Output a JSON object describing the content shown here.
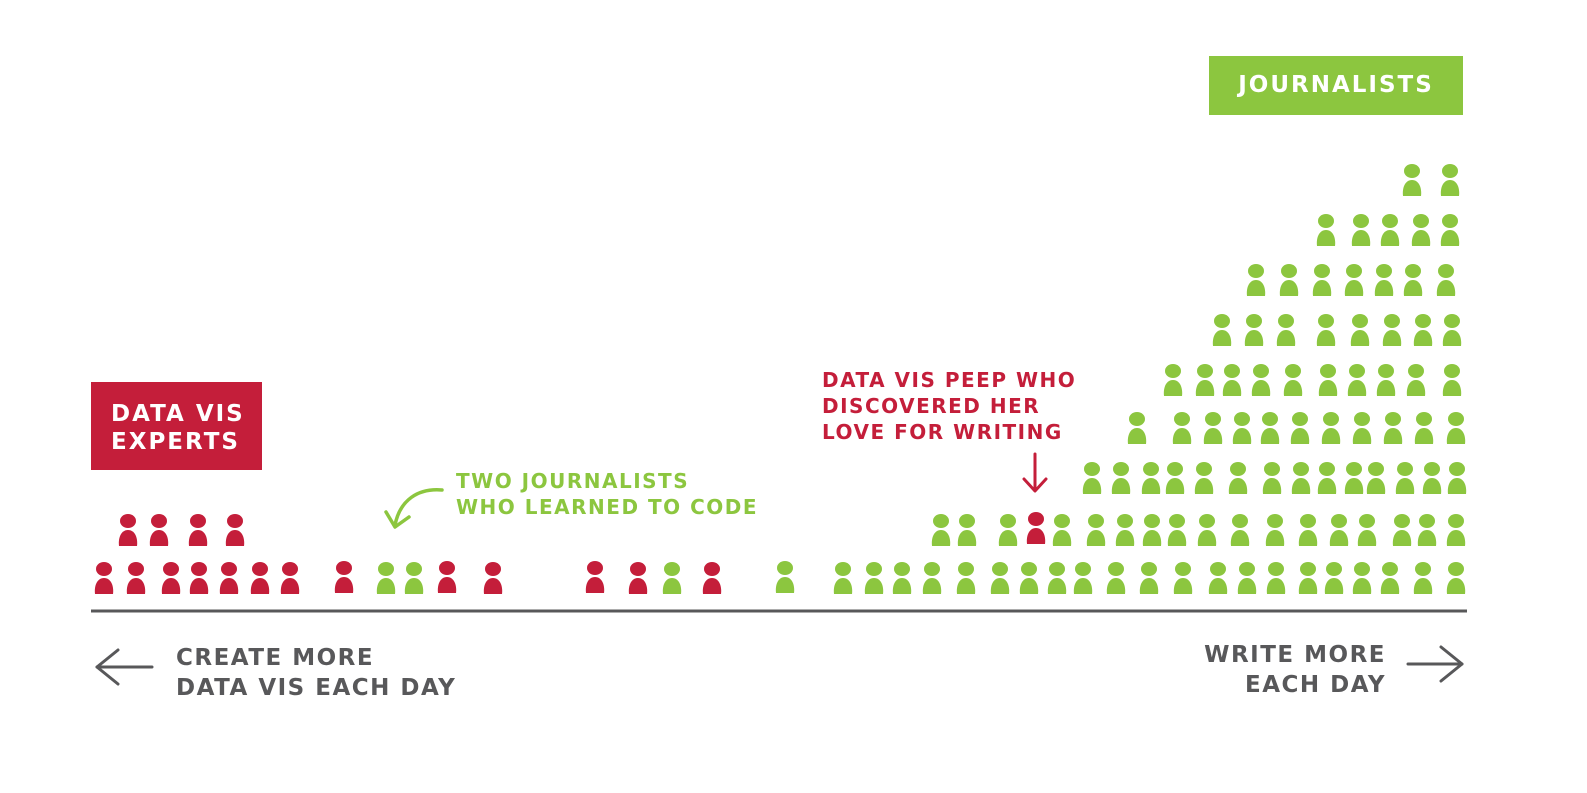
{
  "labels": {
    "experts": [
      "DATA VIS",
      "EXPERTS"
    ],
    "journalists": "JOURNALISTS"
  },
  "annotations": {
    "journalists_learned_code": [
      "TWO JOURNALISTS",
      "WHO LEARNED TO CODE"
    ],
    "data_vis_peep": [
      "DATA VIS PEEP WHO",
      "DISCOVERED HER",
      "LOVE FOR WRITING"
    ]
  },
  "axis": {
    "left_caption": [
      "CREATE MORE",
      "DATA VIS EACH DAY"
    ],
    "right_caption": [
      "WRITE MORE",
      "EACH DAY"
    ]
  },
  "colors": {
    "data_vis": "#c41e3a",
    "journalist": "#8cc63f",
    "axis": "#58585a",
    "white": "#ffffff"
  },
  "icons": [
    "person-icon",
    "arrow-left-icon",
    "arrow-right-icon",
    "curved-arrow-icon",
    "down-arrow-icon"
  ]
}
